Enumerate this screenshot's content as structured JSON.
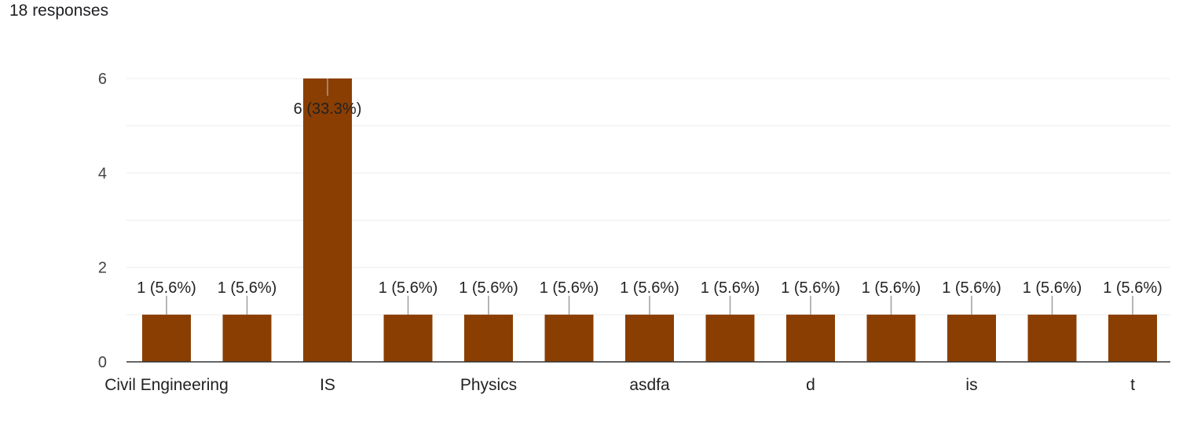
{
  "header": {
    "responses_text": "18 responses"
  },
  "colors": {
    "bar": "#8B3E02",
    "grid": "#ececec",
    "axis": "#333333",
    "leader": "#9e9e9e"
  },
  "chart_data": {
    "type": "bar",
    "categories": [
      "Civil Engineering",
      "",
      "IS",
      "",
      "Physics",
      "",
      "asdfa",
      "",
      "d",
      "",
      "is",
      "",
      "t"
    ],
    "values": [
      1,
      1,
      6,
      1,
      1,
      1,
      1,
      1,
      1,
      1,
      1,
      1,
      1
    ],
    "data_labels": [
      "1 (5.6%)",
      "1 (5.6%)",
      "6 (33.3%)",
      "1 (5.6%)",
      "1 (5.6%)",
      "1 (5.6%)",
      "1 (5.6%)",
      "1 (5.6%)",
      "1 (5.6%)",
      "1 (5.6%)",
      "1 (5.6%)",
      "1 (5.6%)",
      "1 (5.6%)"
    ],
    "ylim": [
      0,
      6
    ],
    "yticks": [
      0,
      2,
      4,
      6
    ],
    "grid": true,
    "legend": "none"
  }
}
